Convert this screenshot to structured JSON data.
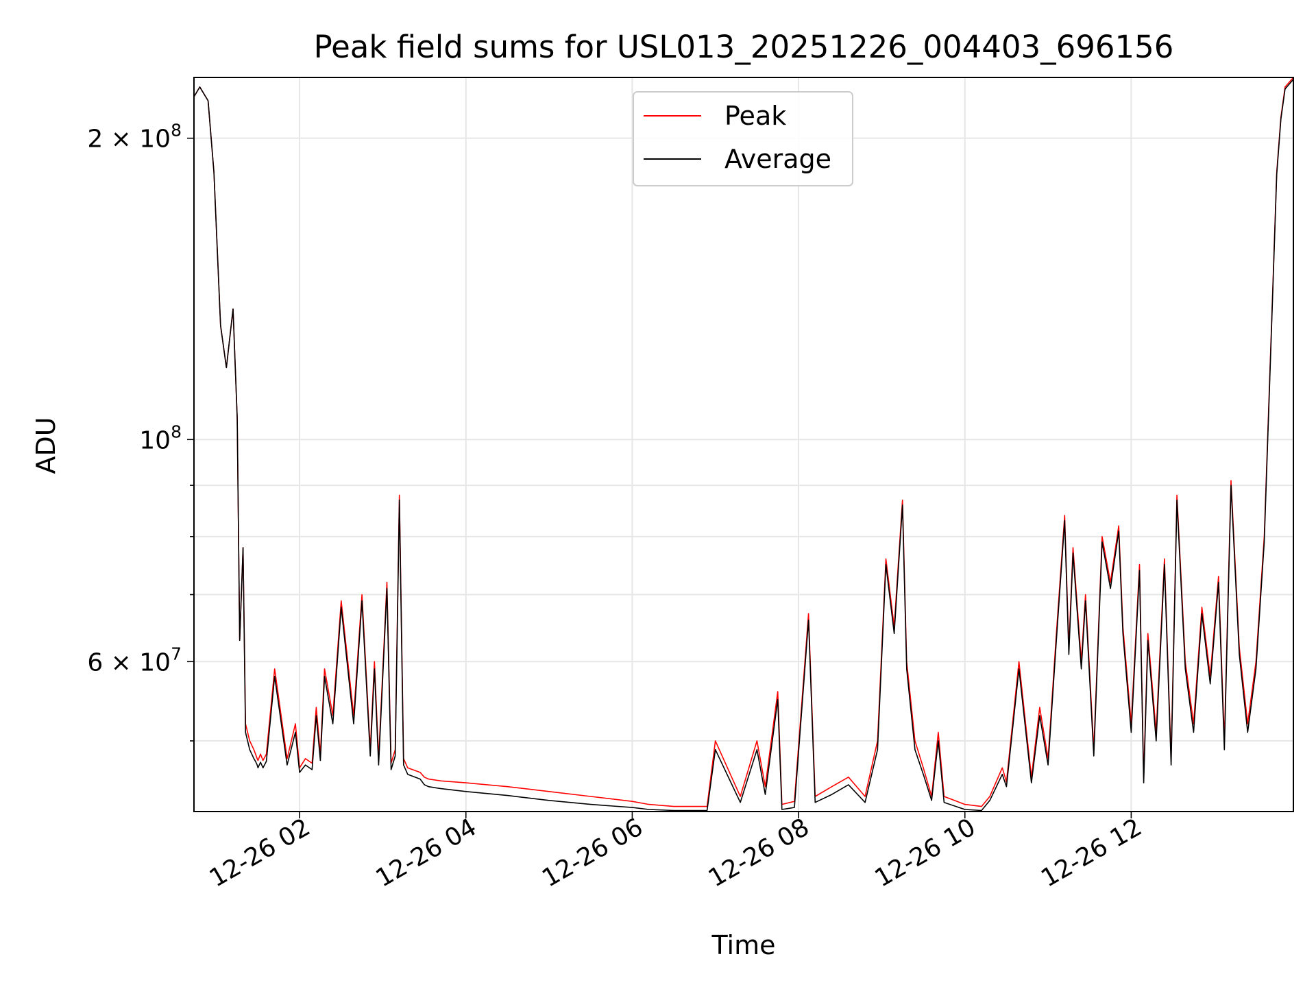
{
  "chart_data": {
    "type": "line",
    "title": "Peak field sums for USL013_20251226_004403_696156",
    "xlabel": "Time",
    "ylabel": "ADU",
    "yscale": "log",
    "ylim": [
      42500000,
      230000000
    ],
    "x_units": "hours since 2025-12-26 00:00",
    "xlim": [
      0.73,
      13.95
    ],
    "grid": true,
    "legend_position": "top-center",
    "x_ticks": [
      {
        "value": 2,
        "label": "12-26 02"
      },
      {
        "value": 4,
        "label": "12-26 04"
      },
      {
        "value": 6,
        "label": "12-26 06"
      },
      {
        "value": 8,
        "label": "12-26 08"
      },
      {
        "value": 10,
        "label": "12-26 10"
      },
      {
        "value": 12,
        "label": "12-26 12"
      }
    ],
    "y_major_ticks": [
      {
        "value": 60000000,
        "mantissa": "6",
        "exponent": "7"
      },
      {
        "value": 100000000,
        "mantissa": "",
        "exponent": "8"
      },
      {
        "value": 200000000,
        "mantissa": "2",
        "exponent": "8"
      }
    ],
    "y_minor_ticks": [
      50000000,
      70000000,
      80000000,
      90000000
    ],
    "series": [
      {
        "name": "Peak",
        "color": "#ff0000",
        "x": [
          0.73,
          0.8,
          0.9,
          0.97,
          1.05,
          1.12,
          1.2,
          1.25,
          1.28,
          1.32,
          1.35,
          1.4,
          1.45,
          1.47,
          1.49,
          1.5,
          1.53,
          1.56,
          1.6,
          1.7,
          1.85,
          1.95,
          2.0,
          2.07,
          2.15,
          2.2,
          2.25,
          2.3,
          2.4,
          2.5,
          2.65,
          2.75,
          2.85,
          2.9,
          2.95,
          3.05,
          3.1,
          3.15,
          3.2,
          3.25,
          3.3,
          3.45,
          3.5,
          3.55,
          3.7,
          4.0,
          4.5,
          5.0,
          5.5,
          6.0,
          6.2,
          6.5,
          6.9,
          7.0,
          7.3,
          7.5,
          7.6,
          7.75,
          7.8,
          7.95,
          8.12,
          8.2,
          8.4,
          8.6,
          8.8,
          8.95,
          9.05,
          9.15,
          9.25,
          9.3,
          9.4,
          9.5,
          9.6,
          9.68,
          9.75,
          10.0,
          10.2,
          10.3,
          10.45,
          10.5,
          10.65,
          10.8,
          10.9,
          11.0,
          11.1,
          11.2,
          11.25,
          11.3,
          11.4,
          11.45,
          11.55,
          11.65,
          11.75,
          11.85,
          11.9,
          12.0,
          12.1,
          12.15,
          12.2,
          12.3,
          12.4,
          12.48,
          12.55,
          12.65,
          12.75,
          12.85,
          12.95,
          13.05,
          13.12,
          13.2,
          13.3,
          13.4,
          13.5,
          13.6,
          13.7,
          13.75,
          13.8,
          13.85,
          13.95
        ],
        "y": [
          220000000,
          225000000,
          218000000,
          185000000,
          130000000,
          118000000,
          135000000,
          105000000,
          63000000,
          78000000,
          52000000,
          50000000,
          49000000,
          48500000,
          48000000,
          47800000,
          48500000,
          47800000,
          48500000,
          59000000,
          48000000,
          52000000,
          47000000,
          48000000,
          47500000,
          54000000,
          48500000,
          59000000,
          53000000,
          69000000,
          53000000,
          70000000,
          49000000,
          60000000,
          48000000,
          72000000,
          47500000,
          49000000,
          88000000,
          48000000,
          47000000,
          46500000,
          46000000,
          45800000,
          45600000,
          45400000,
          45000000,
          44500000,
          44000000,
          43500000,
          43200000,
          43000000,
          43000000,
          50000000,
          44000000,
          50000000,
          45000000,
          56000000,
          43200000,
          43500000,
          67000000,
          44000000,
          45000000,
          46000000,
          44000000,
          50000000,
          76000000,
          65000000,
          87000000,
          60000000,
          50000000,
          47000000,
          44000000,
          51000000,
          44000000,
          43200000,
          43000000,
          44000000,
          47000000,
          45500000,
          60000000,
          46000000,
          54000000,
          48000000,
          64000000,
          84000000,
          62000000,
          78000000,
          60000000,
          70000000,
          49000000,
          80000000,
          72000000,
          82000000,
          65000000,
          52000000,
          75000000,
          46000000,
          64000000,
          51000000,
          76000000,
          48000000,
          88000000,
          60000000,
          52000000,
          68000000,
          58000000,
          73000000,
          50000000,
          91000000,
          62000000,
          52000000,
          60000000,
          80000000,
          140000000,
          185000000,
          210000000,
          225000000,
          230000000
        ]
      },
      {
        "name": "Average",
        "color": "#000000",
        "x": [
          0.73,
          0.8,
          0.9,
          0.97,
          1.05,
          1.12,
          1.2,
          1.25,
          1.28,
          1.32,
          1.35,
          1.4,
          1.45,
          1.47,
          1.49,
          1.5,
          1.53,
          1.56,
          1.6,
          1.7,
          1.85,
          1.95,
          2.0,
          2.07,
          2.15,
          2.2,
          2.25,
          2.3,
          2.4,
          2.5,
          2.65,
          2.75,
          2.85,
          2.9,
          2.95,
          3.05,
          3.1,
          3.15,
          3.2,
          3.25,
          3.3,
          3.45,
          3.5,
          3.55,
          3.7,
          4.0,
          4.5,
          5.0,
          5.5,
          6.0,
          6.2,
          6.5,
          6.9,
          7.0,
          7.3,
          7.5,
          7.6,
          7.75,
          7.8,
          7.95,
          8.12,
          8.2,
          8.4,
          8.6,
          8.8,
          8.95,
          9.05,
          9.15,
          9.25,
          9.3,
          9.4,
          9.5,
          9.6,
          9.68,
          9.75,
          10.0,
          10.2,
          10.3,
          10.45,
          10.5,
          10.65,
          10.8,
          10.9,
          11.0,
          11.1,
          11.2,
          11.25,
          11.3,
          11.4,
          11.45,
          11.55,
          11.65,
          11.75,
          11.85,
          11.9,
          12.0,
          12.1,
          12.15,
          12.2,
          12.3,
          12.4,
          12.48,
          12.55,
          12.65,
          12.75,
          12.85,
          12.95,
          13.05,
          13.12,
          13.2,
          13.3,
          13.4,
          13.5,
          13.6,
          13.7,
          13.75,
          13.8,
          13.85,
          13.95
        ],
        "y": [
          220000000,
          225000000,
          218000000,
          185000000,
          130000000,
          118000000,
          135000000,
          105000000,
          63000000,
          78000000,
          51000000,
          49000000,
          48000000,
          47700000,
          47300000,
          47000000,
          47600000,
          47000000,
          47700000,
          58000000,
          47300000,
          51000000,
          46500000,
          47300000,
          46800000,
          53000000,
          47800000,
          58000000,
          52000000,
          68000000,
          52000000,
          69000000,
          48300000,
          59000000,
          47300000,
          71000000,
          46800000,
          48300000,
          87000000,
          47300000,
          46300000,
          45800000,
          45200000,
          45000000,
          44800000,
          44500000,
          44100000,
          43600000,
          43200000,
          42900000,
          42700000,
          42600000,
          42600000,
          49000000,
          43400000,
          49000000,
          44200000,
          55000000,
          42700000,
          42900000,
          66000000,
          43400000,
          44200000,
          45200000,
          43400000,
          49000000,
          75000000,
          64000000,
          86000000,
          59000000,
          49000000,
          46300000,
          43600000,
          50000000,
          43400000,
          42700000,
          42600000,
          43600000,
          46300000,
          45000000,
          59000000,
          45400000,
          53000000,
          47300000,
          63000000,
          83000000,
          61000000,
          77000000,
          59000000,
          69000000,
          48300000,
          79000000,
          71000000,
          81000000,
          64000000,
          51000000,
          74000000,
          45400000,
          63000000,
          50000000,
          75000000,
          47300000,
          87000000,
          59000000,
          51000000,
          67000000,
          57000000,
          72000000,
          49000000,
          90000000,
          61000000,
          51000000,
          59000000,
          79000000,
          139000000,
          184000000,
          209000000,
          224000000,
          229000000
        ]
      }
    ]
  }
}
